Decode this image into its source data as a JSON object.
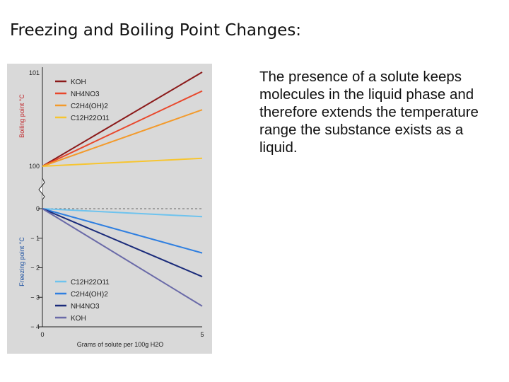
{
  "slide": {
    "title": "Freezing and Boiling Point Changes:",
    "body": "The presence of a solute keeps molecules in the liquid phase and therefore extends the temperature range the substance exists as a liquid."
  },
  "chart_data": [
    {
      "type": "line",
      "title": "",
      "xlabel": "Grams of solute per 100g H2O",
      "ylabel": "Boiling point °C",
      "xlim": [
        0,
        5
      ],
      "ylim": [
        100,
        101
      ],
      "yticks": [
        "100",
        "101"
      ],
      "xticks": [
        "0",
        "5"
      ],
      "legend_placement": "top-left",
      "series": [
        {
          "name": "KOH",
          "color": "#8b1a1a",
          "x": [
            0,
            5
          ],
          "y": [
            100,
            100.95
          ]
        },
        {
          "name": "NH4NO3",
          "color": "#e8472b",
          "x": [
            0,
            5
          ],
          "y": [
            100,
            100.76
          ]
        },
        {
          "name": "C2H4(OH)2",
          "color": "#f39a2b",
          "x": [
            0,
            5
          ],
          "y": [
            100,
            100.57
          ]
        },
        {
          "name": "C12H22O11",
          "color": "#f7c530",
          "x": [
            0,
            5
          ],
          "y": [
            100,
            100.08
          ]
        }
      ]
    },
    {
      "type": "line",
      "title": "",
      "xlabel": "Grams of solute per 100g H2O",
      "ylabel": "Freezing point °C",
      "xlim": [
        0,
        5
      ],
      "ylim": [
        -4,
        0
      ],
      "yticks": [
        "0",
        "− 1",
        "− 2",
        "− 3",
        "− 4"
      ],
      "legend_placement": "bottom-left",
      "series": [
        {
          "name": "C12H22O11",
          "color": "#6ec3ee",
          "x": [
            0,
            5
          ],
          "y": [
            0,
            -0.27
          ]
        },
        {
          "name": "C2H4(OH)2",
          "color": "#2f7fe0",
          "x": [
            0,
            5
          ],
          "y": [
            0,
            -1.5
          ]
        },
        {
          "name": "NH4NO3",
          "color": "#1a2b7a",
          "x": [
            0,
            5
          ],
          "y": [
            0,
            -2.3
          ]
        },
        {
          "name": "KOH",
          "color": "#6a6aa8",
          "x": [
            0,
            5
          ],
          "y": [
            0,
            -3.3
          ]
        }
      ]
    }
  ]
}
